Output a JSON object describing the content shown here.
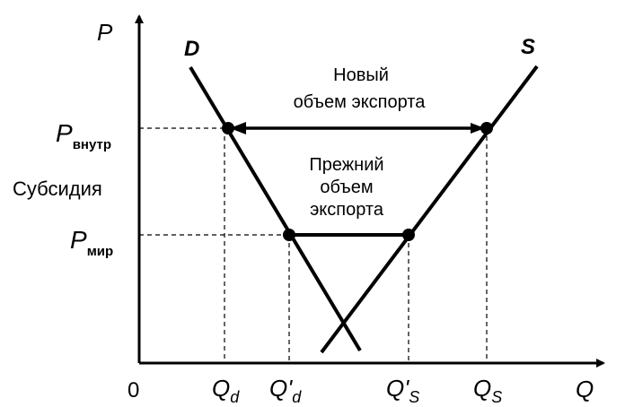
{
  "axes": {
    "y_label": "P",
    "x_label": "Q",
    "origin": "0"
  },
  "curves": {
    "demand": "D",
    "supply": "S"
  },
  "price_levels": {
    "domestic": {
      "main": "P",
      "sub": "внутр"
    },
    "world": {
      "main": "P",
      "sub": "мир"
    },
    "subsidy_label": "Субсидия"
  },
  "quantities": {
    "qd": {
      "main": "Q",
      "sub": "d"
    },
    "qd_prime": {
      "main": "Q'",
      "sub": "d"
    },
    "qs_prime": {
      "main": "Q'",
      "sub": "S"
    },
    "qs": {
      "main": "Q",
      "sub": "S"
    }
  },
  "annotations": {
    "new_export_line1": "Новый",
    "new_export_line2": "объем экспорта",
    "old_export_line1": "Прежний",
    "old_export_line2": "объем",
    "old_export_line3": "экспорта"
  }
}
